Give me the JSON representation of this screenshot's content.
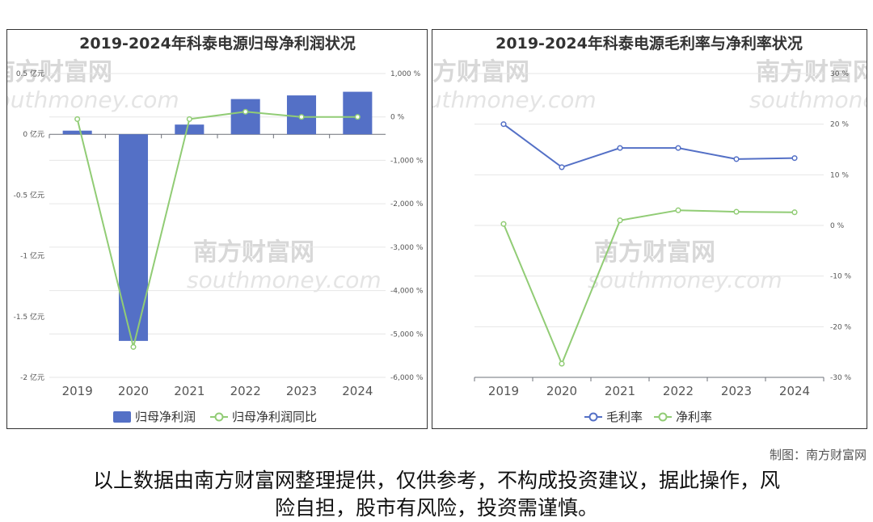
{
  "watermark": {
    "cn": "南方财富网",
    "en": "southmoney.com"
  },
  "chart_data": [
    {
      "type": "bar",
      "title": "2019-2024年科泰电源归母净利润状况",
      "categories": [
        "2019",
        "2020",
        "2021",
        "2022",
        "2023",
        "2024"
      ],
      "series": [
        {
          "name": "归母净利润",
          "type": "bar",
          "axis": "left",
          "color": "#5470c6",
          "values": [
            0.03,
            -1.7,
            0.08,
            0.29,
            0.32,
            0.35
          ]
        },
        {
          "name": "归母净利润同比",
          "type": "line",
          "axis": "right",
          "color": "#91cc75",
          "values": [
            -50,
            -5300,
            -50,
            120,
            0,
            0
          ]
        }
      ],
      "left_axis": {
        "ylim": [
          -2,
          0.5
        ],
        "ticks": [
          "0.5 亿元",
          "0 亿元",
          "-0.5 亿元",
          "-1 亿元",
          "-1.5 亿元",
          "-2 亿元"
        ]
      },
      "right_axis": {
        "ylim": [
          -6000,
          1000
        ],
        "ticks": [
          "1,000 %",
          "0 %",
          "-1,000 %",
          "-2,000 %",
          "-3,000 %",
          "-4,000 %",
          "-5,000 %",
          "-6,000 %"
        ]
      },
      "grid": true,
      "legend_position": "bottom"
    },
    {
      "type": "line",
      "title": "2019-2024年科泰电源毛利率与净利率状况",
      "categories": [
        "2019",
        "2020",
        "2021",
        "2022",
        "2023",
        "2024"
      ],
      "series": [
        {
          "name": "毛利率",
          "color": "#5470c6",
          "values": [
            20,
            11.5,
            15.3,
            15.3,
            13.1,
            13.3
          ]
        },
        {
          "name": "净利率",
          "color": "#91cc75",
          "values": [
            0.3,
            -27.3,
            1,
            3,
            2.7,
            2.6
          ]
        }
      ],
      "right_axis": {
        "ylim": [
          -30,
          30
        ],
        "ticks": [
          "30 %",
          "20 %",
          "10 %",
          "0 %",
          "-10 %",
          "-20 %",
          "-30 %"
        ]
      },
      "grid": true,
      "legend_position": "bottom"
    }
  ],
  "credit": "制图：南方财富网",
  "disclaimer": {
    "line1": "以上数据由南方财富网整理提供，仅供参考，不构成投资建议，据此操作，风",
    "line2": "险自担，股市有风险，投资需谨慎。"
  }
}
